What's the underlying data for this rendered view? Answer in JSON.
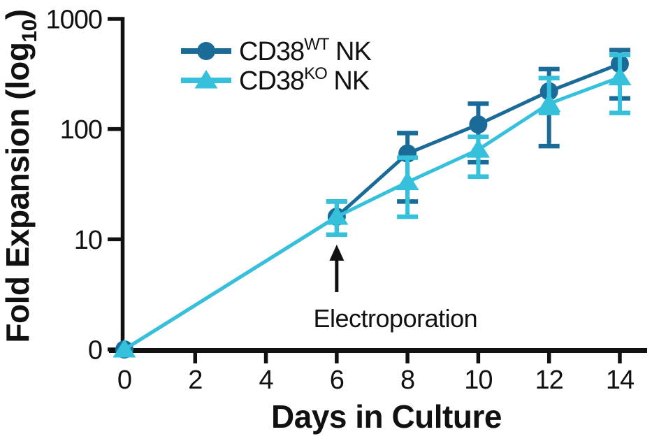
{
  "chart_data": {
    "type": "line",
    "title": "",
    "xlabel": "Days in Culture",
    "ylabel": "Fold Expansion (log10)",
    "ylabel_parts": {
      "base": "Fold Expansion (log",
      "sub": "10",
      "close": ")"
    },
    "y_scale": "log10",
    "x_range": [
      0,
      14
    ],
    "x_ticks": [
      0,
      2,
      4,
      6,
      8,
      10,
      12,
      14
    ],
    "y_ticks": [
      {
        "label": "1000",
        "value": 1000
      },
      {
        "label": "100",
        "value": 100
      },
      {
        "label": "10",
        "value": 10
      },
      {
        "label": "0",
        "value": 1
      }
    ],
    "grid": false,
    "legend_position": "top-left-inside",
    "x": [
      0,
      6,
      8,
      10,
      12,
      14
    ],
    "series": [
      {
        "id": "cd38-wt-nk",
        "name": "CD38WT NK",
        "label": {
          "base": "CD38",
          "sup": "WT",
          "rest": " NK"
        },
        "marker": "circle",
        "color": "#1A6B97",
        "values": [
          1,
          16,
          60,
          110,
          220,
          390
        ],
        "err_lo": [
          null,
          11,
          22,
          50,
          70,
          190
        ],
        "err_hi": [
          null,
          22,
          92,
          170,
          350,
          520
        ]
      },
      {
        "id": "cd38-ko-nk",
        "name": "CD38KO NK",
        "label": {
          "base": "CD38",
          "sup": "KO",
          "rest": " NK"
        },
        "marker": "triangle",
        "color": "#35C0DB",
        "values": [
          1,
          16,
          33,
          65,
          170,
          295
        ],
        "err_lo": [
          null,
          11,
          16,
          37,
          140,
          140
        ],
        "err_hi": [
          null,
          22,
          55,
          85,
          290,
          470
        ]
      }
    ],
    "annotation": {
      "text": "Electroporation",
      "points_to_x": 6
    },
    "colors": {
      "axis_ink": "#111111",
      "background": "#ffffff"
    }
  }
}
